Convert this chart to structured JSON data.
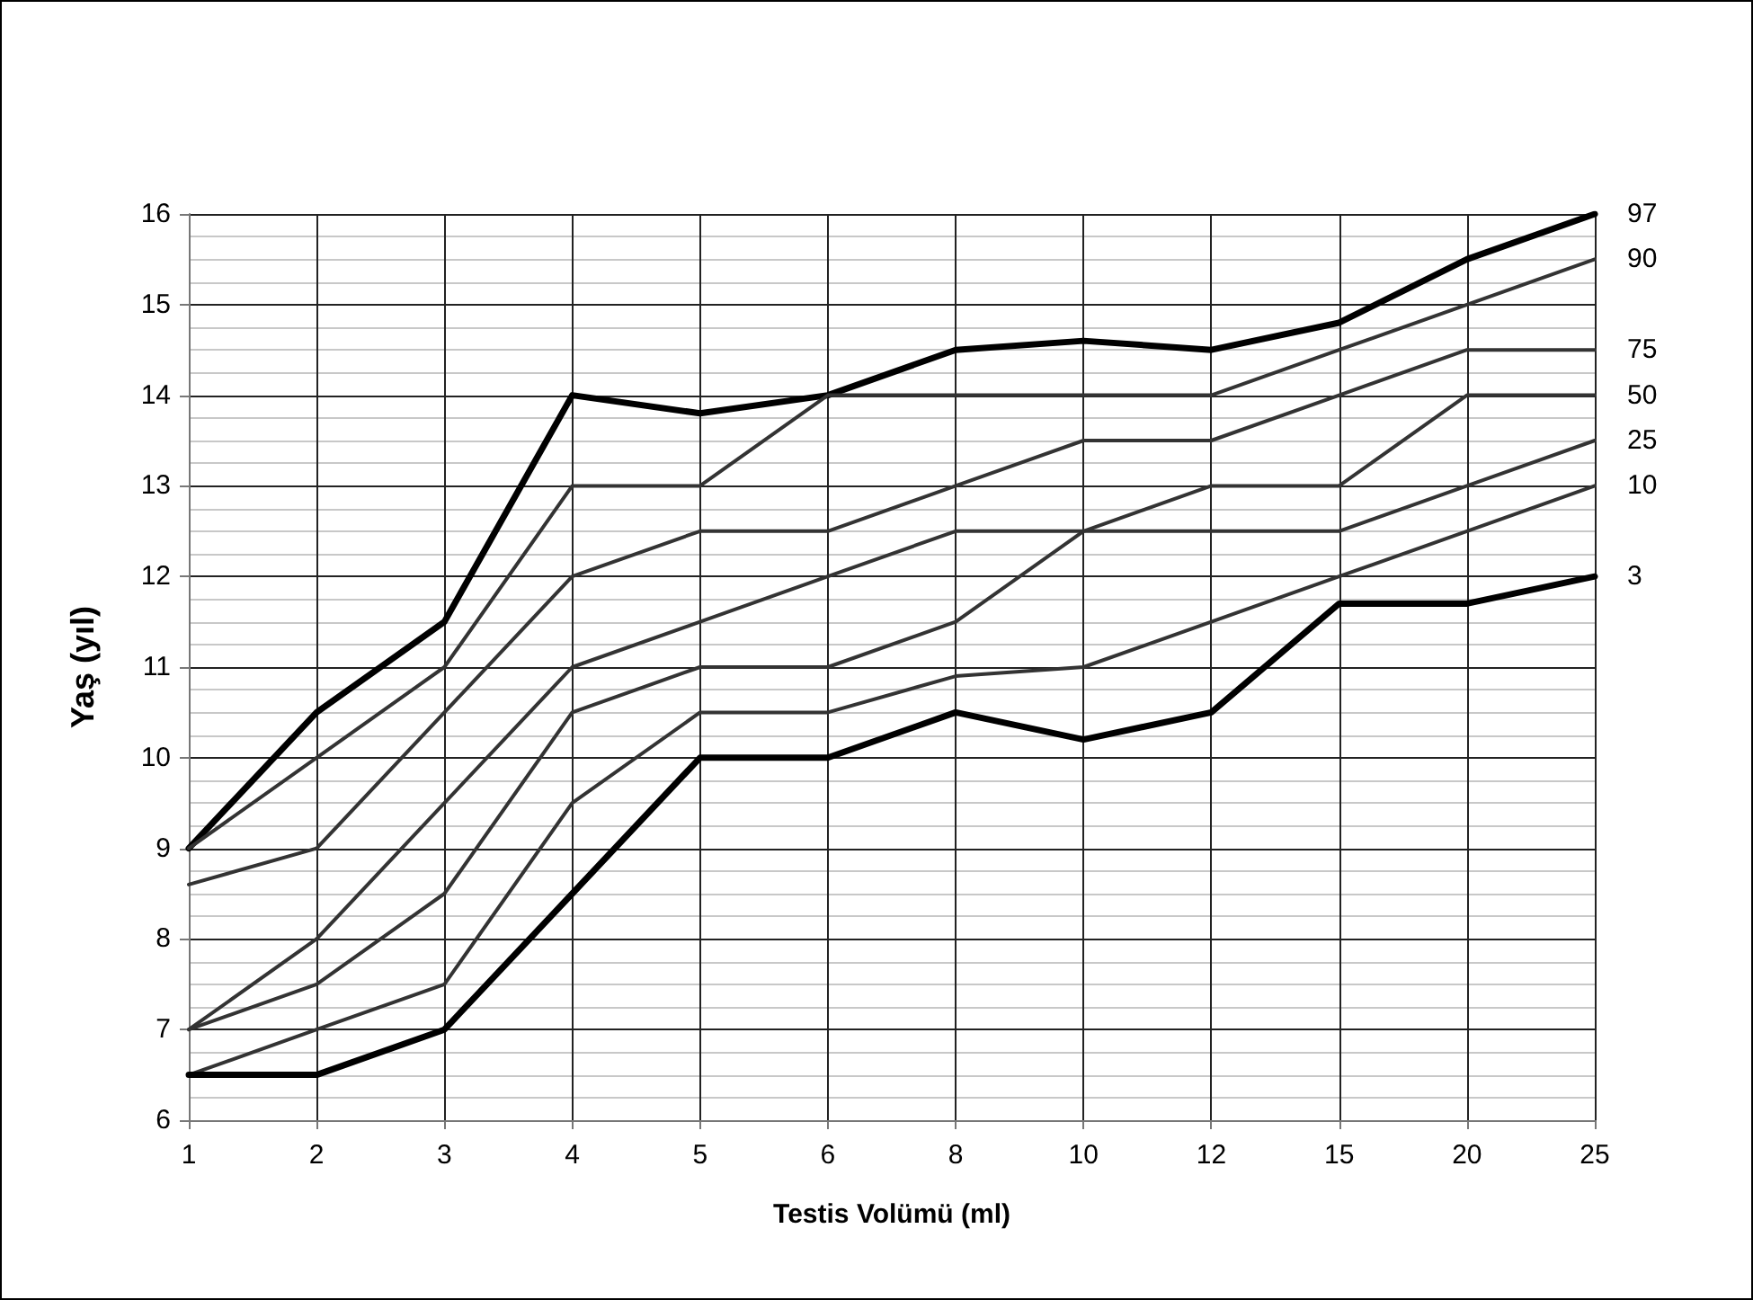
{
  "chart_data": {
    "type": "line",
    "xlabel": "Testis Volümü (ml)",
    "ylabel": "Yaş (yıl)",
    "categories": [
      "1",
      "2",
      "3",
      "4",
      "5",
      "6",
      "8",
      "10",
      "12",
      "15",
      "20",
      "25"
    ],
    "series": [
      {
        "name": "97",
        "color": "#000000",
        "values": [
          9,
          10.5,
          11.5,
          14,
          13.8,
          14,
          14.5,
          14.6,
          14.5,
          14.8,
          15.5,
          16
        ]
      },
      {
        "name": "90",
        "color": "#333333",
        "values": [
          9,
          10,
          11,
          13,
          13,
          14,
          14,
          14,
          14,
          14.5,
          15,
          15.5
        ]
      },
      {
        "name": "75",
        "color": "#333333",
        "values": [
          8.6,
          9,
          10.5,
          12,
          12.5,
          12.5,
          13,
          13.5,
          13.5,
          14,
          14.5,
          14.5
        ]
      },
      {
        "name": "50",
        "color": "#333333",
        "values": [
          7,
          7.5,
          8.5,
          10.5,
          11,
          11,
          11.5,
          12.5,
          13,
          13,
          14,
          14
        ]
      },
      {
        "name": "25",
        "color": "#333333",
        "values": [
          7,
          8,
          9.5,
          11,
          11.5,
          12,
          12.5,
          12.5,
          12.5,
          12.5,
          13,
          13.5
        ]
      },
      {
        "name": "10",
        "color": "#333333",
        "values": [
          6.5,
          7,
          7.5,
          9.5,
          10.5,
          10.5,
          10.9,
          11,
          11.5,
          12,
          12.5,
          13
        ]
      },
      {
        "name": "3",
        "color": "#000000",
        "values": [
          6.5,
          6.5,
          7,
          8.5,
          10,
          10,
          10.5,
          10.2,
          10.5,
          11.7,
          11.7,
          12
        ]
      }
    ],
    "ylim": [
      6,
      16
    ],
    "yticks": [
      6,
      7,
      8,
      9,
      10,
      11,
      12,
      13,
      14,
      15,
      16
    ],
    "grid": true,
    "legend": false,
    "marker": "none",
    "line_style": "solid"
  }
}
